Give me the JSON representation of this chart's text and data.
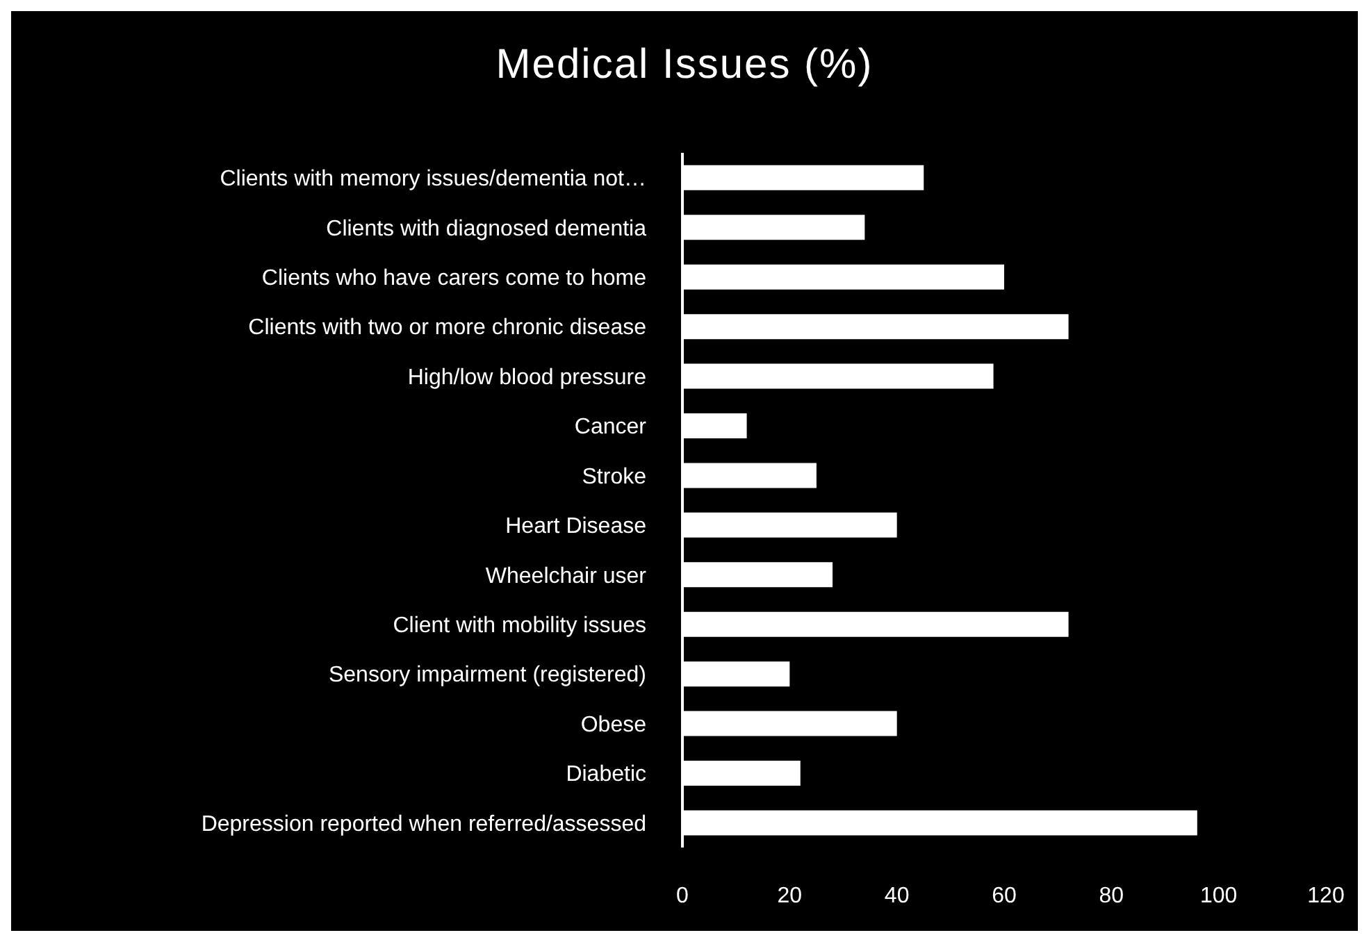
{
  "chart_data": {
    "type": "bar",
    "orientation": "horizontal",
    "title": "Medical Issues (%)",
    "categories": [
      "Clients with memory issues/dementia not…",
      "Clients with diagnosed dementia",
      "Clients who have carers come to home",
      "Clients with two or more chronic disease",
      "High/low blood pressure",
      "Cancer",
      "Stroke",
      "Heart Disease",
      "Wheelchair user",
      "Client with mobility issues",
      "Sensory impairment (registered)",
      "Obese",
      "Diabetic",
      "Depression reported when referred/assessed"
    ],
    "values": [
      45,
      34,
      60,
      72,
      58,
      12,
      25,
      40,
      28,
      72,
      20,
      40,
      22,
      96
    ],
    "color": "#ffffff",
    "xlim": [
      0,
      120
    ],
    "xticks": [
      0,
      20,
      40,
      60,
      80,
      100,
      120
    ],
    "grid": false
  }
}
